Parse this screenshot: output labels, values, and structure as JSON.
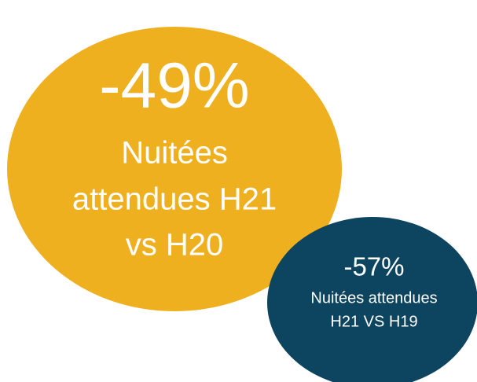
{
  "bubbles": [
    {
      "value": "-49%",
      "lines": [
        "Nuitées",
        "attendues H21",
        "vs H20"
      ]
    },
    {
      "value": "-57%",
      "lines": [
        "Nuitées attendues",
        "H21 VS H19"
      ]
    }
  ]
}
